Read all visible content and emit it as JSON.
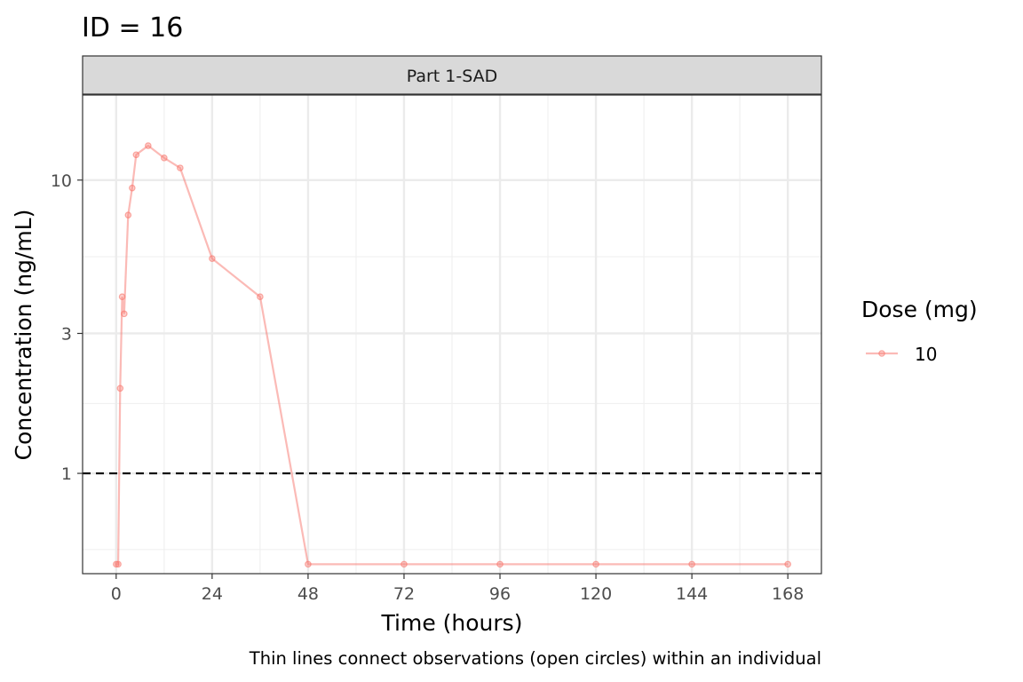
{
  "chart_data": {
    "type": "line",
    "title": "ID = 16",
    "facet_label": "Part 1-SAD",
    "xlabel": "Time (hours)",
    "ylabel": "Concentration (ng/mL)",
    "caption": "Thin lines connect observations (open circles) within an individual",
    "x_scale": "linear",
    "y_scale": "log10",
    "xlim": [
      -8.4,
      176.4
    ],
    "ylim": [
      0.455,
      19.5
    ],
    "x_ticks": [
      0,
      24,
      48,
      72,
      96,
      120,
      144,
      168
    ],
    "x_minor_ticks": [
      -12,
      12,
      36,
      60,
      84,
      108,
      132,
      156
    ],
    "y_ticks": [
      1,
      3,
      10
    ],
    "y_minor_ticks": [
      0.55,
      1.73,
      5.48
    ],
    "reference_line": {
      "y": 1,
      "style": "dashed"
    },
    "grid": true,
    "legend": {
      "title": "Dose (mg)",
      "position": "right"
    },
    "series": [
      {
        "name": "10",
        "color": "#f8766d",
        "x": [
          0,
          0.5,
          1,
          1.5,
          2,
          3,
          4,
          5,
          8,
          12,
          16,
          24,
          36,
          48,
          72,
          96,
          120,
          144,
          168
        ],
        "y": [
          0.49,
          0.49,
          1.95,
          4.0,
          3.5,
          7.6,
          9.4,
          12.2,
          13.1,
          11.9,
          11.0,
          5.4,
          4.0,
          0.49,
          0.49,
          0.49,
          0.49,
          0.49,
          0.49
        ]
      }
    ]
  }
}
